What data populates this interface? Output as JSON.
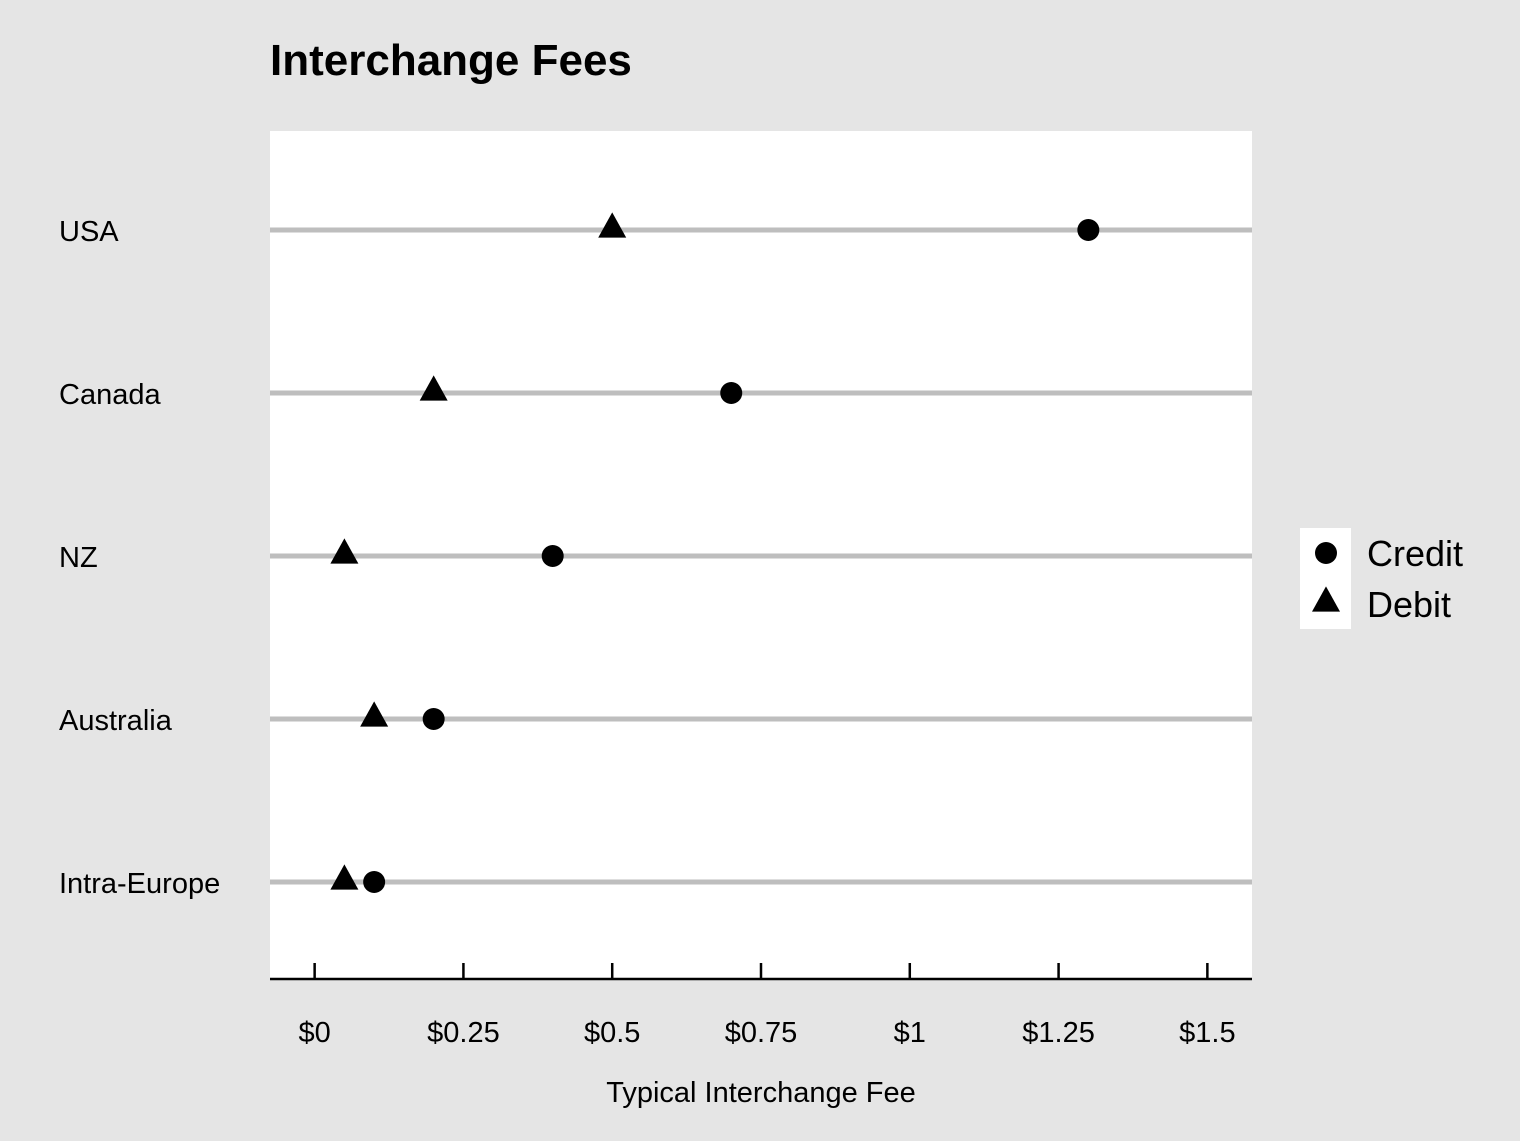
{
  "chart_data": {
    "type": "dot",
    "title": "Interchange Fees",
    "xlabel": "Typical Interchange Fee",
    "ylabel": "",
    "categories": [
      "USA",
      "Canada",
      "NZ",
      "Australia",
      "Intra-Europe"
    ],
    "series": [
      {
        "name": "Credit",
        "marker": "circle",
        "values": [
          1.3,
          0.7,
          0.4,
          0.2,
          0.1
        ]
      },
      {
        "name": "Debit",
        "marker": "triangle",
        "values": [
          0.5,
          0.2,
          0.05,
          0.1,
          0.05
        ]
      }
    ],
    "xlim": [
      -0.075,
      1.575
    ],
    "xticks": [
      0,
      0.25,
      0.5,
      0.75,
      1,
      1.25,
      1.5
    ],
    "xtick_labels": [
      "$0",
      "$0.25",
      "$0.5",
      "$0.75",
      "$1",
      "$1.25",
      "$1.5"
    ],
    "legend_position": "right",
    "grid": "horizontal",
    "colors": {
      "background": "#e5e5e5",
      "panel": "#ffffff",
      "gridline": "#bebebe",
      "marker": "#000000",
      "axis": "#000000"
    }
  }
}
